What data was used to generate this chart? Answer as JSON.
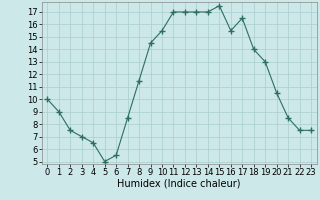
{
  "title": "",
  "xlabel": "Humidex (Indice chaleur)",
  "x": [
    0,
    1,
    2,
    3,
    4,
    5,
    6,
    7,
    8,
    9,
    10,
    11,
    12,
    13,
    14,
    15,
    16,
    17,
    18,
    19,
    20,
    21,
    22,
    23
  ],
  "y": [
    10,
    9,
    7.5,
    7,
    6.5,
    5,
    5.5,
    8.5,
    11.5,
    14.5,
    15.5,
    17,
    17,
    17,
    17,
    17.5,
    15.5,
    16.5,
    14,
    13,
    10.5,
    8.5,
    7.5,
    7.5
  ],
  "line_color": "#2e6e5e",
  "marker": "+",
  "marker_size": 4,
  "marker_linewidth": 1.0,
  "linewidth": 0.8,
  "background_color": "#cde8e8",
  "grid_color": "#aacece",
  "ylim": [
    4.8,
    17.8
  ],
  "xlim": [
    -0.5,
    23.5
  ],
  "yticks": [
    5,
    6,
    7,
    8,
    9,
    10,
    11,
    12,
    13,
    14,
    15,
    16,
    17
  ],
  "xticks": [
    0,
    1,
    2,
    3,
    4,
    5,
    6,
    7,
    8,
    9,
    10,
    11,
    12,
    13,
    14,
    15,
    16,
    17,
    18,
    19,
    20,
    21,
    22,
    23
  ],
  "xlabel_fontsize": 7,
  "tick_fontsize": 6
}
